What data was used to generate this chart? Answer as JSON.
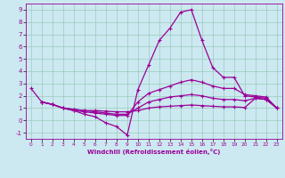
{
  "xlabel": "Windchill (Refroidissement éolien,°C)",
  "background_color": "#cce8f0",
  "line_color": "#990099",
  "grid_color": "#99ccbb",
  "xlim": [
    -0.5,
    23.5
  ],
  "ylim": [
    -1.5,
    9.5
  ],
  "yticks": [
    -1,
    0,
    1,
    2,
    3,
    4,
    5,
    6,
    7,
    8,
    9
  ],
  "xtick_labels": [
    "0",
    "1",
    "2",
    "3",
    "4",
    "5",
    "6",
    "7",
    "8",
    "9",
    "10",
    "11",
    "12",
    "13",
    "14",
    "15",
    "16",
    "17",
    "18",
    "19",
    "20",
    "21",
    "22",
    "23"
  ],
  "lines": [
    {
      "x": [
        0,
        1,
        2,
        3,
        4,
        5,
        6,
        7,
        8,
        9,
        10,
        11,
        12,
        13,
        14,
        15,
        16,
        17,
        18,
        19,
        20,
        21,
        22,
        23
      ],
      "y": [
        2.6,
        1.5,
        1.3,
        1.0,
        0.8,
        0.5,
        0.3,
        -0.2,
        -0.5,
        -1.2,
        2.5,
        4.5,
        6.5,
        7.5,
        8.8,
        9.0,
        6.5,
        4.3,
        3.5,
        3.5,
        2.0,
        1.9,
        1.8,
        1.0
      ]
    },
    {
      "x": [
        1,
        2,
        3,
        4,
        5,
        6,
        7,
        8,
        9,
        10,
        11,
        12,
        13,
        14,
        15,
        16,
        17,
        18,
        19,
        20,
        21,
        22,
        23
      ],
      "y": [
        1.5,
        1.3,
        1.0,
        0.8,
        0.7,
        0.6,
        0.5,
        0.4,
        0.4,
        1.5,
        2.2,
        2.5,
        2.8,
        3.1,
        3.3,
        3.1,
        2.8,
        2.6,
        2.6,
        2.1,
        2.0,
        1.9,
        1.0
      ]
    },
    {
      "x": [
        1,
        2,
        3,
        4,
        5,
        6,
        7,
        8,
        9,
        10,
        11,
        12,
        13,
        14,
        15,
        16,
        17,
        18,
        19,
        20,
        21,
        22,
        23
      ],
      "y": [
        1.5,
        1.3,
        1.0,
        0.9,
        0.8,
        0.7,
        0.6,
        0.5,
        0.5,
        1.0,
        1.5,
        1.7,
        1.9,
        2.0,
        2.1,
        2.0,
        1.8,
        1.7,
        1.7,
        1.6,
        1.8,
        1.7,
        1.0
      ]
    },
    {
      "x": [
        1,
        2,
        3,
        4,
        5,
        6,
        7,
        8,
        9,
        10,
        11,
        12,
        13,
        14,
        15,
        16,
        17,
        18,
        19,
        20,
        21,
        22,
        23
      ],
      "y": [
        1.5,
        1.3,
        1.0,
        0.9,
        0.8,
        0.8,
        0.75,
        0.7,
        0.7,
        0.8,
        1.0,
        1.1,
        1.15,
        1.2,
        1.25,
        1.2,
        1.15,
        1.1,
        1.1,
        1.05,
        1.8,
        1.7,
        1.0
      ]
    }
  ]
}
